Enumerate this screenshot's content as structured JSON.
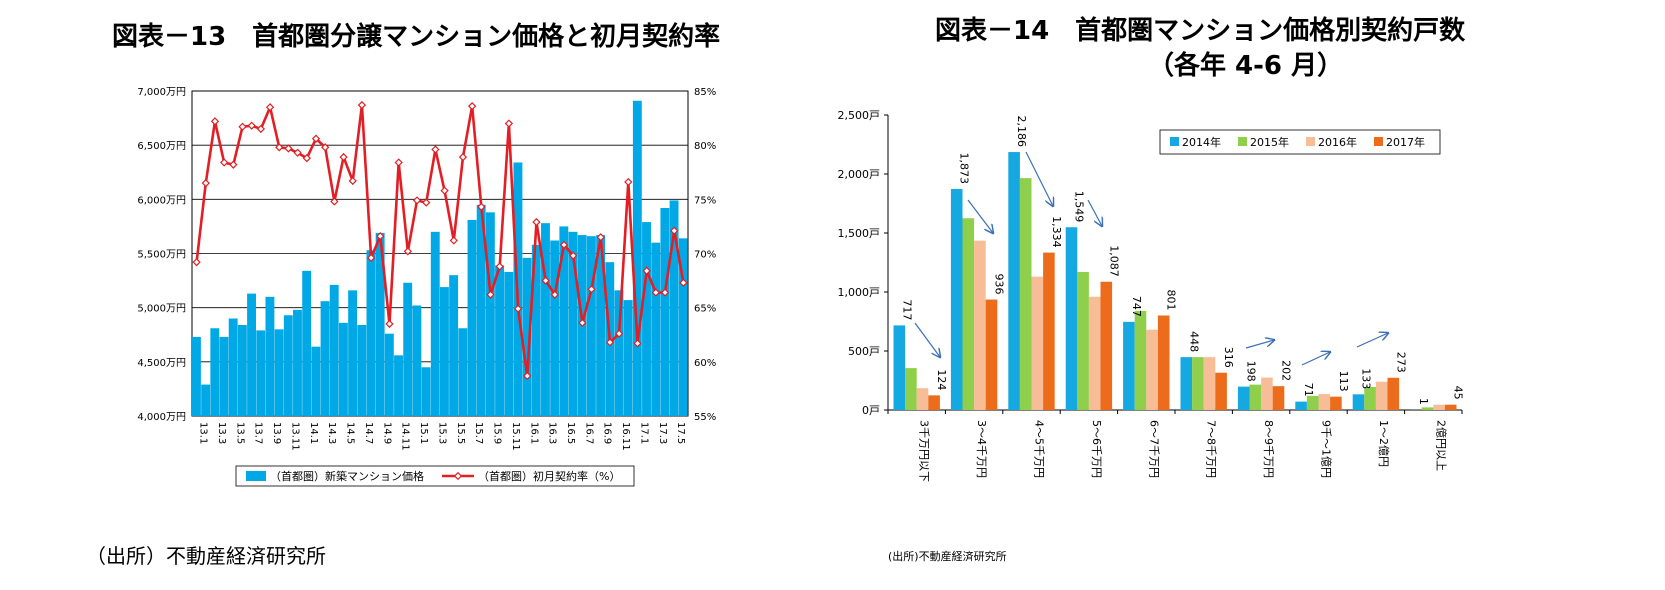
{
  "left": {
    "title": "図表－13　首都圏分譲マンション価格と初月契約率",
    "source": "（出所）不動産経済研究所"
  },
  "right": {
    "title_line1": "図表－14　首都圏マンション価格別契約戸数",
    "title_line2": "（各年 4-6 月）",
    "source": "(出所)不動産経済研究所"
  },
  "colors": {
    "bar_cyan": "#00a9e6",
    "line_red": "#e31e24",
    "y2014": "#16a8e0",
    "y2015": "#8fcf4b",
    "y2016": "#f6bd96",
    "y2017": "#ec6c1c",
    "arrow": "#3a6fb7"
  },
  "chart_data": [
    {
      "type": "bar+line",
      "title": "図表－13　首都圏分譲マンション価格と初月契約率",
      "y_left": {
        "min": 4000,
        "max": 7000,
        "ticks": [
          "4,000万円",
          "4,500万円",
          "5,000万円",
          "5,500万円",
          "6,000万円",
          "6,500万円",
          "7,000万円"
        ]
      },
      "y_right": {
        "min": 55,
        "max": 85,
        "ticks": [
          "55%",
          "60%",
          "65%",
          "70%",
          "75%",
          "80%",
          "85%"
        ]
      },
      "x_tick_labels": [
        "13.1",
        "13.3",
        "13.5",
        "13.7",
        "13.9",
        "13.11",
        "14.1",
        "14.3",
        "14.5",
        "14.7",
        "14.9",
        "14.11",
        "15.1",
        "15.3",
        "15.5",
        "15.7",
        "15.9",
        "15.11",
        "16.1",
        "16.3",
        "16.5",
        "16.7",
        "16.9",
        "16.11",
        "17.1",
        "17.3",
        "17.5"
      ],
      "series": [
        {
          "name": "（首都圏）新築マンション価格",
          "kind": "bar",
          "values": [
            4730,
            4290,
            4810,
            4730,
            4900,
            4840,
            5130,
            4790,
            5100,
            4800,
            4930,
            4980,
            5340,
            4640,
            5060,
            5210,
            4860,
            5160,
            4840,
            5530,
            5690,
            4760,
            4560,
            5230,
            5020,
            4450,
            5700,
            5190,
            5300,
            4810,
            5810,
            5950,
            5880,
            5390,
            5330,
            6340,
            5460,
            5580,
            5780,
            5620,
            5750,
            5700,
            5670,
            5660,
            5670,
            5420,
            5160,
            5070,
            6910,
            5790,
            5600,
            5920,
            5990,
            5640
          ]
        },
        {
          "name": "（首都圏）初月契約率（%）",
          "kind": "line",
          "values": [
            69.2,
            76.5,
            82.2,
            78.4,
            78.2,
            81.7,
            81.8,
            81.5,
            83.5,
            79.8,
            79.7,
            79.3,
            78.8,
            80.6,
            79.8,
            74.8,
            78.9,
            76.7,
            83.7,
            69.6,
            71.6,
            63.5,
            78.4,
            70.2,
            74.9,
            74.7,
            79.6,
            75.8,
            71.2,
            78.9,
            83.6,
            74.3,
            66.2,
            68.8,
            82.0,
            64.9,
            58.7,
            72.9,
            67.5,
            66.2,
            70.8,
            69.8,
            63.6,
            66.7,
            71.5,
            61.8,
            62.6,
            76.6,
            61.7,
            68.4,
            66.4,
            66.4,
            72.1,
            67.3
          ]
        }
      ],
      "legend": "bottom"
    },
    {
      "type": "bar",
      "title": "図表－14　首都圏マンション価格別契約戸数（各年 4-6 月）",
      "categories": [
        "3千万円以下",
        "3～4千万円",
        "4～5千万円",
        "5～6千万円",
        "6～7千万円",
        "7～8千万円",
        "8～9千万円",
        "9千～1億円",
        "1～2億円",
        "2億円以上"
      ],
      "y": {
        "min": 0,
        "max": 2500,
        "ticks": [
          "0戸",
          "500戸",
          "1,000戸",
          "1,500戸",
          "2,000戸",
          "2,500戸"
        ]
      },
      "series": [
        {
          "name": "2014年",
          "values": [
            717,
            1873,
            2186,
            1549,
            747,
            448,
            198,
            71,
            133,
            1
          ]
        },
        {
          "name": "2015年",
          "values": [
            355,
            1625,
            1965,
            1170,
            840,
            448,
            215,
            120,
            195,
            22
          ]
        },
        {
          "name": "2016年",
          "values": [
            185,
            1435,
            1130,
            960,
            680,
            448,
            275,
            135,
            240,
            45
          ]
        },
        {
          "name": "2017年",
          "values": [
            124,
            936,
            1334,
            1087,
            801,
            316,
            202,
            113,
            273,
            45
          ]
        }
      ],
      "labels_2014": [
        "717",
        "1,873",
        "2,186",
        "1,549",
        "747",
        "448",
        "198",
        "71",
        "133",
        "1"
      ],
      "labels_2017": [
        "124",
        "936",
        "1,334",
        "1,087",
        "801",
        "316",
        "202",
        "113",
        "273",
        "45"
      ],
      "legend": "top-right"
    }
  ]
}
